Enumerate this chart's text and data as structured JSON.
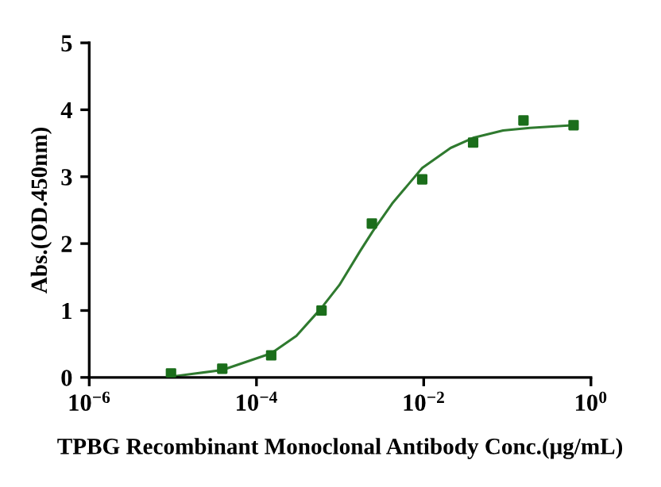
{
  "chart_data": {
    "type": "scatter",
    "xlabel": "TPBG Recombinant Monoclonal Antibody Conc.(μg/mL)",
    "ylabel": "Abs.(OD.450nm)",
    "log": "x",
    "grid": false,
    "marker": "square",
    "xlim": [
      1e-06,
      1
    ],
    "ylim": [
      0,
      5
    ],
    "xticks": [
      {
        "value": 1e-06,
        "label": "10$^{−6}$"
      },
      {
        "value": 0.0001,
        "label": "10$^{−4}$"
      },
      {
        "value": 0.01,
        "label": "10$^{−2}$"
      },
      {
        "value": 1,
        "label": "10$^{0}$"
      }
    ],
    "yticks": [
      0,
      1,
      2,
      3,
      4,
      5
    ],
    "series": [
      {
        "color": "#1b6e1b",
        "x": [
          9.5e-06,
          3.9e-05,
          0.00015,
          0.0006,
          0.0024,
          0.0096,
          0.039,
          0.156,
          0.62
        ],
        "values": [
          0.06,
          0.13,
          0.33,
          1.0,
          2.3,
          2.96,
          3.51,
          3.84,
          3.77
        ]
      },
      {
        "type": "line",
        "marker": "none",
        "color": "#2f7a2f",
        "x": [
          1.07e-05,
          1.9e-05,
          3.9e-05,
          0.00015,
          0.0003,
          0.0006,
          0.00098,
          0.00174,
          0.00245,
          0.0042,
          0.0065,
          0.0096,
          0.021,
          0.039,
          0.089,
          0.186,
          0.62
        ],
        "values": [
          0.02,
          0.06,
          0.11,
          0.36,
          0.62,
          1.04,
          1.38,
          1.89,
          2.18,
          2.6,
          2.88,
          3.13,
          3.43,
          3.58,
          3.69,
          3.73,
          3.77
        ]
      }
    ]
  }
}
